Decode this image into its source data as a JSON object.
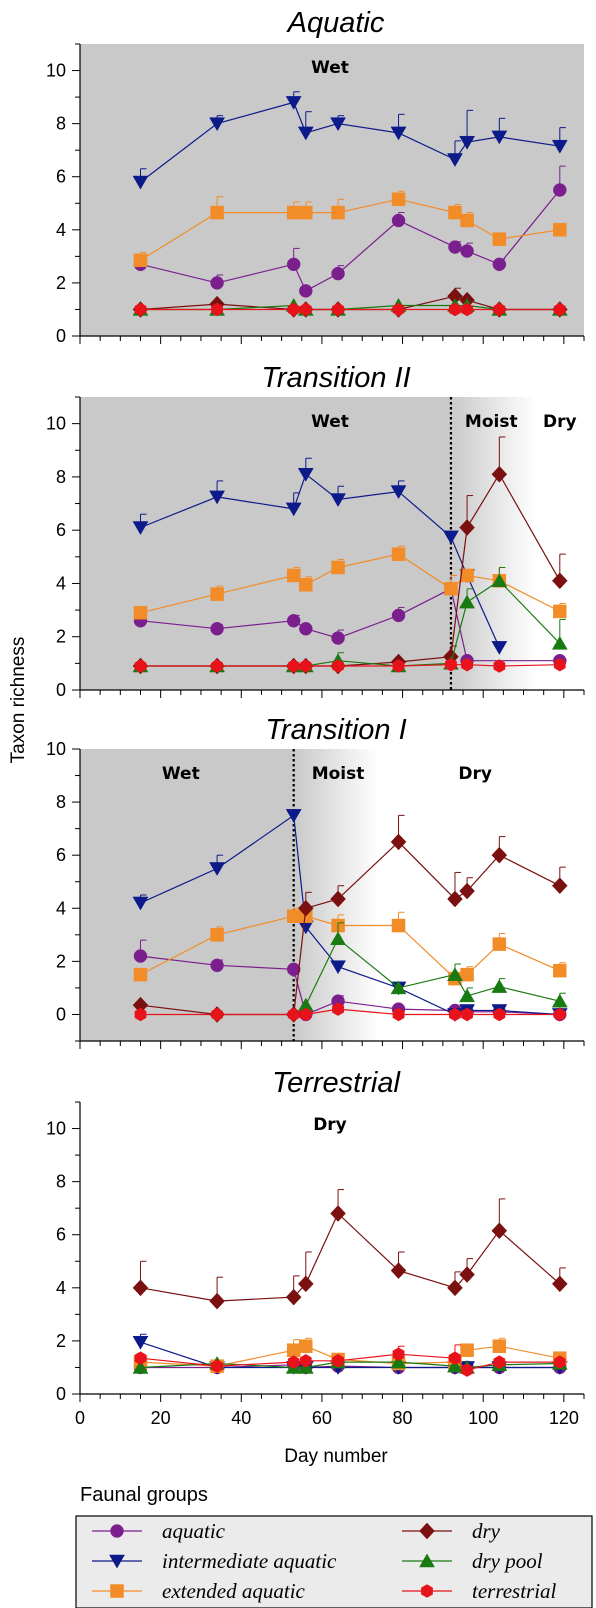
{
  "chart_data": [
    {
      "type": "line",
      "title": "Aquatic",
      "ylim": [
        0,
        11
      ],
      "xlim": [
        0,
        125
      ],
      "shaded_region": [
        0,
        125
      ],
      "zones": [
        {
          "label": "Wet",
          "x": 62
        }
      ],
      "series": [
        {
          "name": "aquatic",
          "x": [
            15,
            34,
            53,
            56,
            64,
            79,
            93,
            96,
            104,
            119
          ],
          "y": [
            2.7,
            2.0,
            2.7,
            1.7,
            2.35,
            4.35,
            3.35,
            3.2,
            2.7,
            5.5
          ],
          "err": [
            0.2,
            0.3,
            0.6,
            0,
            0.3,
            0.3,
            0.2,
            0.3,
            0.2,
            0.9
          ]
        },
        {
          "name": "intermediate aquatic",
          "x": [
            15,
            34,
            53,
            56,
            64,
            79,
            93,
            96,
            104,
            119
          ],
          "y": [
            5.8,
            8.0,
            8.8,
            7.65,
            8.0,
            7.65,
            6.65,
            7.3,
            7.5,
            7.15
          ],
          "err": [
            0.5,
            0.3,
            0.4,
            0.8,
            0.3,
            0.7,
            0.7,
            1.2,
            0.7,
            0.7
          ]
        },
        {
          "name": "extended aquatic",
          "x": [
            15,
            34,
            53,
            56,
            64,
            79,
            93,
            96,
            104,
            119
          ],
          "y": [
            2.85,
            4.65,
            4.65,
            4.65,
            4.65,
            5.15,
            4.65,
            4.35,
            3.65,
            4.0
          ],
          "err": [
            0.3,
            0.6,
            0.4,
            0.4,
            0.5,
            0.3,
            0.3,
            0.3,
            0,
            0
          ]
        },
        {
          "name": "dry",
          "x": [
            15,
            34,
            53,
            56,
            64,
            79,
            93,
            96,
            104,
            119
          ],
          "y": [
            1.0,
            1.2,
            1.0,
            1.0,
            1.0,
            1.0,
            1.5,
            1.35,
            1.0,
            1.0
          ],
          "err": [
            0,
            0,
            0,
            0,
            0,
            0,
            0.3,
            0,
            0,
            0
          ]
        },
        {
          "name": "dry pool",
          "x": [
            15,
            34,
            53,
            56,
            64,
            79,
            93,
            96,
            104,
            119
          ],
          "y": [
            1.0,
            1.0,
            1.15,
            1.0,
            1.0,
            1.15,
            1.15,
            1.15,
            1.0,
            1.0
          ],
          "err": [
            0,
            0,
            0,
            0,
            0,
            0,
            0,
            0,
            0,
            0
          ]
        },
        {
          "name": "terrestrial",
          "x": [
            15,
            34,
            53,
            56,
            64,
            79,
            93,
            96,
            104,
            119
          ],
          "y": [
            1.0,
            1.0,
            1.0,
            1.0,
            1.0,
            1.0,
            1.0,
            1.0,
            1.0,
            1.0
          ],
          "err": [
            0,
            0,
            0,
            0,
            0,
            0,
            0,
            0,
            0,
            0
          ]
        }
      ]
    },
    {
      "type": "line",
      "title": "Transition II",
      "ylim": [
        0,
        11
      ],
      "xlim": [
        0,
        125
      ],
      "shaded_region": [
        0,
        92
      ],
      "gradient_region": [
        92,
        113
      ],
      "divider_x": 92,
      "zones": [
        {
          "label": "Wet",
          "x": 62
        },
        {
          "label": "Moist",
          "x": 102
        },
        {
          "label": "Dry",
          "x": 119
        }
      ],
      "series": [
        {
          "name": "aquatic",
          "x": [
            15,
            34,
            53,
            56,
            64,
            79,
            92,
            96,
            119
          ],
          "y": [
            2.6,
            2.3,
            2.6,
            2.3,
            1.95,
            2.8,
            3.8,
            1.1,
            1.1
          ],
          "err": [
            0.2,
            0.15,
            0.2,
            0,
            0.3,
            0.3,
            0.5,
            0,
            0
          ]
        },
        {
          "name": "intermediate aquatic",
          "x": [
            15,
            34,
            53,
            56,
            64,
            79,
            92,
            96,
            104
          ],
          "y": [
            6.1,
            7.25,
            6.8,
            8.1,
            7.15,
            7.45,
            5.75,
            4.3,
            1.6
          ],
          "err": [
            0.5,
            0.6,
            0.6,
            0.6,
            0.5,
            0.4,
            0,
            0,
            0
          ]
        },
        {
          "name": "extended aquatic",
          "x": [
            15,
            34,
            53,
            56,
            64,
            79,
            92,
            96,
            104,
            119
          ],
          "y": [
            2.9,
            3.6,
            4.3,
            3.95,
            4.6,
            5.1,
            3.8,
            4.3,
            4.1,
            2.95
          ],
          "err": [
            0.2,
            0.3,
            0.3,
            0.3,
            0.3,
            0.3,
            0.5,
            0,
            0.5,
            0.3
          ]
        },
        {
          "name": "dry",
          "x": [
            15,
            34,
            53,
            56,
            64,
            79,
            92,
            96,
            104,
            119
          ],
          "y": [
            0.9,
            0.9,
            0.9,
            0.9,
            0.9,
            1.05,
            1.25,
            6.1,
            8.1,
            4.1
          ],
          "err": [
            0,
            0,
            0,
            0,
            0,
            0,
            0.4,
            1.2,
            1.4,
            1.0
          ]
        },
        {
          "name": "dry pool",
          "x": [
            15,
            34,
            53,
            56,
            64,
            79,
            92,
            96,
            104,
            119
          ],
          "y": [
            0.9,
            0.9,
            0.9,
            0.9,
            1.1,
            0.9,
            1.0,
            3.3,
            4.1,
            1.75
          ],
          "err": [
            0,
            0,
            0,
            0,
            0.3,
            0,
            0,
            0.5,
            0.5,
            0.9
          ]
        },
        {
          "name": "terrestrial",
          "x": [
            15,
            34,
            53,
            56,
            64,
            79,
            92,
            96,
            104,
            119
          ],
          "y": [
            0.9,
            0.9,
            0.9,
            0.9,
            0.9,
            0.9,
            0.95,
            0.95,
            0.9,
            0.95
          ],
          "err": [
            0,
            0,
            0,
            0,
            0,
            0,
            0,
            0,
            0,
            0
          ]
        }
      ]
    },
    {
      "type": "line",
      "title": "Transition I",
      "ylim": [
        -1,
        10
      ],
      "xlim": [
        0,
        125
      ],
      "shaded_region": [
        0,
        53
      ],
      "gradient_region": [
        53,
        74
      ],
      "divider_x": 53,
      "zones": [
        {
          "label": "Wet",
          "x": 25
        },
        {
          "label": "Moist",
          "x": 64
        },
        {
          "label": "Dry",
          "x": 98
        }
      ],
      "series": [
        {
          "name": "aquatic",
          "x": [
            15,
            34,
            53,
            56,
            64,
            79,
            93,
            96,
            104,
            119
          ],
          "y": [
            2.2,
            1.85,
            1.7,
            0.0,
            0.5,
            0.2,
            0.15,
            0.1,
            0.1,
            0.0
          ],
          "err": [
            0.6,
            0.2,
            0,
            0,
            0.2,
            0,
            0,
            0,
            0,
            0
          ]
        },
        {
          "name": "intermediate aquatic",
          "x": [
            15,
            34,
            53,
            56,
            64,
            79,
            93,
            96,
            104,
            119
          ],
          "y": [
            4.2,
            5.5,
            7.5,
            3.3,
            1.8,
            1.0,
            0.0,
            0.15,
            0.15,
            0.0
          ],
          "err": [
            0.3,
            0.5,
            0,
            0,
            0,
            0,
            0,
            0,
            0,
            0
          ]
        },
        {
          "name": "extended aquatic",
          "x": [
            15,
            34,
            53,
            56,
            64,
            79,
            93,
            96,
            104,
            119
          ],
          "y": [
            1.5,
            3.0,
            3.7,
            3.7,
            3.35,
            3.35,
            1.35,
            1.5,
            2.65,
            1.65
          ],
          "err": [
            0.2,
            0.3,
            0.3,
            0,
            0.4,
            0.5,
            0,
            0.3,
            0.4,
            0.3
          ]
        },
        {
          "name": "dry",
          "x": [
            15,
            34,
            53,
            56,
            64,
            79,
            93,
            96,
            104,
            119
          ],
          "y": [
            0.35,
            0.0,
            0.0,
            4.0,
            4.35,
            6.5,
            4.35,
            4.65,
            6.0,
            4.85
          ],
          "err": [
            0,
            0,
            0,
            0.6,
            0.5,
            1.0,
            1.0,
            0.5,
            0.7,
            0.7
          ]
        },
        {
          "name": "dry pool",
          "x": [
            56,
            64,
            79,
            93,
            96,
            104,
            119
          ],
          "y": [
            0.35,
            2.85,
            1.0,
            1.5,
            0.7,
            1.05,
            0.5
          ],
          "err": [
            0,
            0.6,
            0,
            0.4,
            0.3,
            0.3,
            0.3
          ]
        },
        {
          "name": "terrestrial",
          "x": [
            15,
            34,
            53,
            56,
            64,
            79,
            93,
            96,
            104,
            119
          ],
          "y": [
            0.0,
            0.0,
            0.0,
            0.0,
            0.2,
            0.0,
            0.0,
            0.0,
            0.0,
            0.0
          ],
          "err": [
            0,
            0,
            0,
            0,
            0,
            0,
            0,
            0,
            0,
            0
          ]
        }
      ]
    },
    {
      "type": "line",
      "title": "Terrestrial",
      "ylim": [
        0,
        11
      ],
      "xlim": [
        0,
        125
      ],
      "xlabel": "Day number",
      "xticks": [
        0,
        20,
        40,
        60,
        80,
        100,
        120
      ],
      "zones": [
        {
          "label": "Dry",
          "x": 62
        }
      ],
      "series": [
        {
          "name": "aquatic",
          "x": [
            15,
            34,
            53,
            56,
            64,
            79,
            93,
            96,
            104,
            119
          ],
          "y": [
            1.0,
            1.0,
            1.1,
            1.0,
            1.05,
            1.0,
            1.0,
            1.0,
            1.0,
            1.0
          ],
          "err": [
            0,
            0,
            0,
            0,
            0,
            0,
            0,
            0,
            0,
            0
          ]
        },
        {
          "name": "intermediate aquatic",
          "x": [
            15,
            34,
            53,
            56,
            64,
            79,
            93,
            96,
            104,
            119
          ],
          "y": [
            1.95,
            1.0,
            1.0,
            1.0,
            1.0,
            1.0,
            1.0,
            1.0,
            1.0,
            1.0
          ],
          "err": [
            0.3,
            0,
            0,
            0,
            0,
            0,
            0,
            0,
            0,
            0
          ]
        },
        {
          "name": "extended aquatic",
          "x": [
            15,
            34,
            53,
            56,
            64,
            79,
            93,
            96,
            104,
            119
          ],
          "y": [
            1.2,
            1.05,
            1.65,
            1.8,
            1.3,
            1.15,
            1.2,
            1.65,
            1.8,
            1.35
          ],
          "err": [
            0,
            0,
            0.4,
            0.3,
            0,
            0,
            0,
            0.2,
            0.3,
            0
          ]
        },
        {
          "name": "dry",
          "x": [
            15,
            34,
            53,
            56,
            64,
            79,
            93,
            96,
            104,
            119
          ],
          "y": [
            4.0,
            3.5,
            3.65,
            4.15,
            6.8,
            4.65,
            4.0,
            4.5,
            6.15,
            4.15
          ],
          "err": [
            1.0,
            0.9,
            0.8,
            1.2,
            0.9,
            0.7,
            0.6,
            0.6,
            1.2,
            0.6
          ]
        },
        {
          "name": "dry pool",
          "x": [
            15,
            34,
            53,
            56,
            64,
            79,
            93,
            96,
            104,
            119
          ],
          "y": [
            1.0,
            1.15,
            1.0,
            1.0,
            1.2,
            1.2,
            1.05,
            1.0,
            1.1,
            1.15
          ],
          "err": [
            0,
            0,
            0,
            0,
            0,
            0,
            0,
            0,
            0,
            0
          ]
        },
        {
          "name": "terrestrial",
          "x": [
            15,
            34,
            53,
            56,
            64,
            79,
            93,
            96,
            104,
            119
          ],
          "y": [
            1.35,
            1.05,
            1.2,
            1.25,
            1.25,
            1.5,
            1.35,
            0.9,
            1.2,
            1.2
          ],
          "err": [
            0,
            0,
            0,
            0,
            0,
            0.3,
            0.5,
            0,
            0,
            0
          ]
        }
      ]
    }
  ],
  "ylabel": "Taxon richness",
  "legend": {
    "title": "Faunal groups",
    "items": [
      {
        "label": "aquatic",
        "series": "aquatic"
      },
      {
        "label": "dry",
        "series": "dry"
      },
      {
        "label": "intermediate aquatic",
        "series": "intermediate aquatic"
      },
      {
        "label": "dry pool",
        "series": "dry pool"
      },
      {
        "label": "extended aquatic",
        "series": "extended aquatic"
      },
      {
        "label": "terrestrial",
        "series": "terrestrial"
      }
    ]
  },
  "series_style": {
    "aquatic": {
      "color": "#7b1f8f",
      "marker": "circle"
    },
    "intermediate aquatic": {
      "color": "#0d1a8a",
      "marker": "triangle-down"
    },
    "extended aquatic": {
      "color": "#f28c28",
      "marker": "square"
    },
    "dry": {
      "color": "#7a1010",
      "marker": "diamond"
    },
    "dry pool": {
      "color": "#1a7a12",
      "marker": "triangle-up"
    },
    "terrestrial": {
      "color": "#e8121a",
      "marker": "hexagon"
    }
  },
  "colors": {
    "shade": "#c9c9c9",
    "axis": "#000000"
  }
}
